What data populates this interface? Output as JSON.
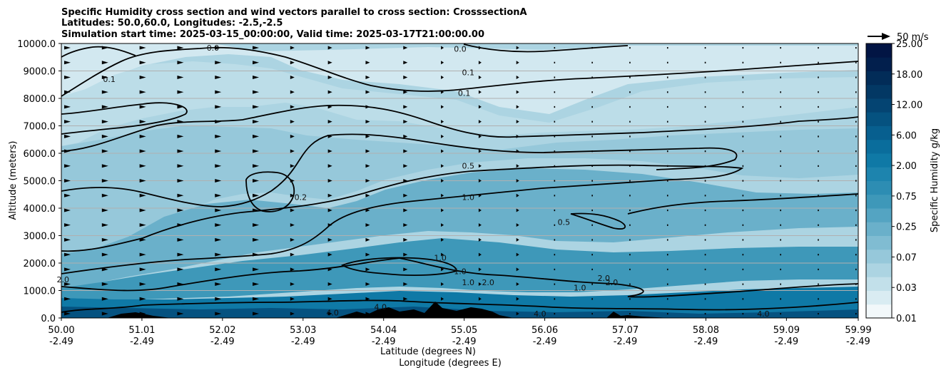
{
  "chart_data": {
    "type": "heatmap",
    "title_lines": [
      "Specific Humidity cross section and wind vectors parallel to cross section: CrosssectionA",
      "Latitudes: 50.0,60.0, Longitudes: -2.5,-2.5",
      "Simulation start time: 2025-03-15_00:00:00, Valid time: 2025-03-17T21:00:00.00"
    ],
    "xlabel_lines": [
      "Latitude (degrees N)",
      "Longitude (degrees E)"
    ],
    "ylabel": "Altitude (meters)",
    "x_ticks": [
      {
        "lat": "50.00",
        "lon": "-2.49"
      },
      {
        "lat": "51.01",
        "lon": "-2.49"
      },
      {
        "lat": "52.02",
        "lon": "-2.49"
      },
      {
        "lat": "53.03",
        "lon": "-2.49"
      },
      {
        "lat": "54.04",
        "lon": "-2.49"
      },
      {
        "lat": "55.05",
        "lon": "-2.49"
      },
      {
        "lat": "56.06",
        "lon": "-2.49"
      },
      {
        "lat": "57.07",
        "lon": "-2.49"
      },
      {
        "lat": "58.08",
        "lon": "-2.49"
      },
      {
        "lat": "59.09",
        "lon": "-2.49"
      },
      {
        "lat": "59.99",
        "lon": "-2.49"
      }
    ],
    "xlim": [
      50.0,
      59.99
    ],
    "y_ticks": [
      "0.0",
      "1000.0",
      "2000.0",
      "3000.0",
      "4000.0",
      "5000.0",
      "6000.0",
      "7000.0",
      "8000.0",
      "9000.0",
      "10000.0"
    ],
    "ylim": [
      0,
      10000
    ],
    "grid": "horizontal",
    "colorbar": {
      "label": "Specific Humidity g/kg",
      "ticks": [
        "0.01",
        "0.03",
        "0.07",
        "0.25",
        "0.75",
        "2.00",
        "6.00",
        "12.00",
        "18.00",
        "25.00"
      ],
      "colors": [
        "#f2f8fa",
        "#d9ecf2",
        "#c2e0ea",
        "#acd4e2",
        "#96c8da",
        "#80bcd2",
        "#6ab0ca",
        "#54a4c2",
        "#3e98b9",
        "#2d8db3",
        "#1d84ae",
        "#0f79a6",
        "#0a6d9c",
        "#075f8f",
        "#055280",
        "#044472",
        "#033864",
        "#022c58",
        "#021f4d",
        "#021544"
      ]
    },
    "reference_vector": {
      "label": "50 m/s"
    },
    "contour_levels": [
      "0.0",
      "0.1",
      "0.2",
      "0.5",
      "1.0",
      "2.0",
      "4.0"
    ],
    "contour_label_marks": [
      {
        "text": "0.0",
        "lat": 51.9,
        "alt": 9850
      },
      {
        "text": "0.1",
        "lat": 50.6,
        "alt": 8700
      },
      {
        "text": "0.0",
        "lat": 55.0,
        "alt": 9800
      },
      {
        "text": "0.1",
        "lat": 55.1,
        "alt": 8950
      },
      {
        "text": "0.1",
        "lat": 55.05,
        "alt": 8200
      },
      {
        "text": "0.2",
        "lat": 53.0,
        "alt": 4400
      },
      {
        "text": "0.5",
        "lat": 55.1,
        "alt": 5550
      },
      {
        "text": "1.0",
        "lat": 55.1,
        "alt": 4400
      },
      {
        "text": "0.5",
        "lat": 56.3,
        "alt": 3500
      },
      {
        "text": "1.0",
        "lat": 54.75,
        "alt": 2200
      },
      {
        "text": "1.0",
        "lat": 55.0,
        "alt": 1700
      },
      {
        "text": "1.0",
        "lat": 55.1,
        "alt": 1300
      },
      {
        "text": "2.0",
        "lat": 55.35,
        "alt": 1300
      },
      {
        "text": "1.0",
        "lat": 56.5,
        "alt": 1100
      },
      {
        "text": "2.0",
        "lat": 56.8,
        "alt": 1450
      },
      {
        "text": "2.0",
        "lat": 56.9,
        "alt": 1300
      },
      {
        "text": "2.0",
        "lat": 50.02,
        "alt": 1400
      },
      {
        "text": "4.0",
        "lat": 53.4,
        "alt": 200
      },
      {
        "text": "4.0",
        "lat": 54.0,
        "alt": 400
      },
      {
        "text": "4.0",
        "lat": 56.0,
        "alt": 150
      },
      {
        "text": "4.0",
        "lat": 58.8,
        "alt": 150
      }
    ]
  }
}
